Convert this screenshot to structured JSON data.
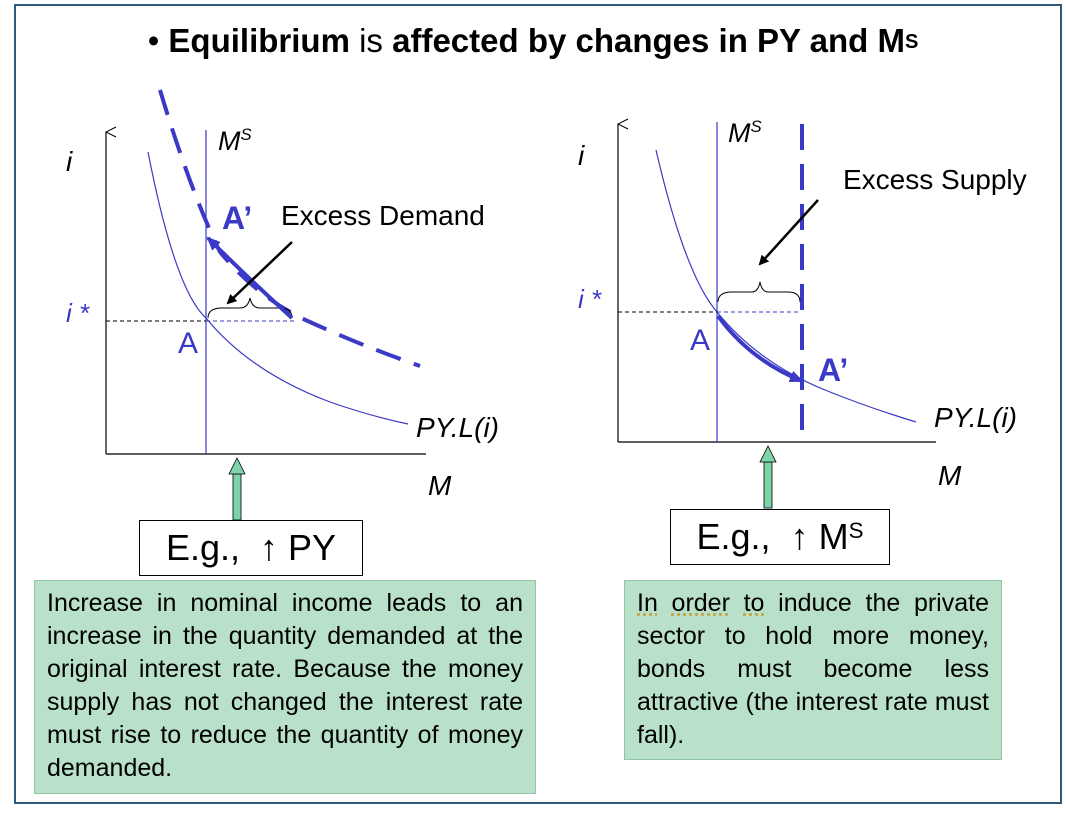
{
  "title": {
    "bullet": "•",
    "part1": "Equilibrium",
    "part2": "is",
    "part3": "affected by changes in PY and M",
    "part3_sup": "S"
  },
  "left_panel": {
    "y_axis_label": "i",
    "x_axis_label": "M",
    "ms_label": "M",
    "ms_sup": "S",
    "i_star_label": "i *",
    "point_a": "A",
    "point_a_prime": "A’",
    "annotation": "Excess Demand",
    "curve_label": "PY.L(i)",
    "eg_prefix": "E.g.,",
    "eg_arrow": "↑",
    "eg_var": "PY",
    "eg_sup": "",
    "note": "Increase in nominal income leads to an increase in the quantity demanded at the original interest rate. Because the money supply has not changed the interest rate must rise to reduce the quantity of money demanded."
  },
  "right_panel": {
    "y_axis_label": "i",
    "x_axis_label": "M",
    "ms_label": "M",
    "ms_sup": "S",
    "i_star_label": "i *",
    "point_a": "A",
    "point_a_prime": "A’",
    "annotation": "Excess Supply",
    "curve_label": "PY.L(i)",
    "eg_prefix": "E.g.,",
    "eg_arrow": "↑",
    "eg_var": "M",
    "eg_sup": "S",
    "note_words": [
      "In",
      "order",
      "to"
    ],
    "note_rest": "induce the private sector to hold more money, bonds must become less attractive (the interest rate must fall)."
  },
  "colors": {
    "curve_blue": "#3a3ac6",
    "arrow_green": "#7fd3a8",
    "note_bg": "#b9e0c8",
    "frame": "#2f5c7a"
  }
}
